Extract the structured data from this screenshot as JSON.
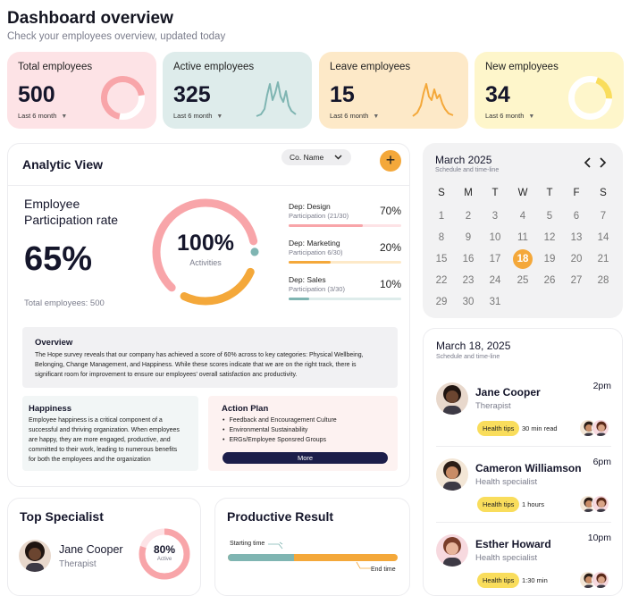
{
  "header": {
    "title": "Dashboard overview",
    "subtitle": "Check your employees overview, updated today"
  },
  "stats": [
    {
      "label": "Total employees",
      "value": "500",
      "period": "Last 6 month",
      "bg": "#fde3e6",
      "accent": "#f8a5a9",
      "viz": "donut",
      "level": 0.7
    },
    {
      "label": "Active employees",
      "value": "325",
      "period": "Last 6 month",
      "bg": "#deeceb",
      "accent": "#7fb5b2",
      "viz": "spark"
    },
    {
      "label": "Leave employees",
      "value": "15",
      "period": "Last 6 month",
      "bg": "#fde9c8",
      "accent": "#f4a83a",
      "viz": "spark"
    },
    {
      "label": "New employees",
      "value": "34",
      "period": "Last 6 month",
      "bg": "#fef6cb",
      "accent": "#f9dd5c",
      "viz": "donut",
      "level": 0.2
    }
  ],
  "analytic": {
    "title": "Analytic View",
    "filter_label": "Co. Name",
    "participation_title_1": "Employee",
    "participation_title_2": "Participation rate",
    "participation_value": "65%",
    "total_employees": "Total employees: 500",
    "ring_value": "100%",
    "ring_label": "Activities",
    "departments": [
      {
        "name": "Dep: Design",
        "sub": "Participation (21/30)",
        "pct": "70%",
        "level": 0.7,
        "color": "#f8a5a9",
        "track": "#fde3e6"
      },
      {
        "name": "Dep: Marketing",
        "sub": "Participation 6/30)",
        "pct": "20%",
        "level": 0.2,
        "color": "#f4a83a",
        "track": "#fde9c8"
      },
      {
        "name": "Dep: Sales",
        "sub": "Participation (3/30)",
        "pct": "10%",
        "level": 0.1,
        "color": "#7fb5b2",
        "track": "#deeceb"
      }
    ],
    "overview": {
      "title": "Overview",
      "line1": "The Hope survey reveals that our company has achieved a score of 60% across to key categories: Physical Wellbeing,",
      "line2": "Belonging, Change Management, and Happiness. While these scores indicate that we are on the right track, there is",
      "line3": "significant room for improvement to ensure our employees' overall satisfaction anc productivity."
    },
    "happiness": {
      "title": "Happiness",
      "lines": [
        "Employee happiness is a critical component of a",
        "successful and thriving organization. When employees",
        "are happy, they are more engaged, productive, and",
        "committed to their work, leading to numerous benefits",
        "for both the employees and the organization"
      ]
    },
    "action_plan": {
      "title": "Action Plan",
      "items": [
        "Feedback and Encouragement Culture",
        "Environmental Sustainability",
        "ERGs/Employee Sponsred Groups"
      ],
      "more_label": "More"
    }
  },
  "calendar": {
    "title": "March 2025",
    "subtitle": "Schedule and time-line",
    "weekdays": [
      "S",
      "M",
      "T",
      "W",
      "T",
      "F",
      "S"
    ],
    "selected": "18",
    "weeks": [
      [
        "1",
        "2",
        "3",
        "4",
        "5",
        "6",
        "7"
      ],
      [
        "8",
        "9",
        "10",
        "11",
        "12",
        "13",
        "14"
      ],
      [
        "15",
        "16",
        "17",
        "18",
        "19",
        "20",
        "21"
      ],
      [
        "22",
        "23",
        "24",
        "25",
        "26",
        "27",
        "28"
      ],
      [
        "29",
        "30",
        "31"
      ]
    ]
  },
  "schedule": {
    "title": "March 18, 2025",
    "subtitle": "Schedule and time-line",
    "items": [
      {
        "name": "Jane Cooper",
        "role": "Therapist",
        "time": "2pm",
        "tag": "Health tips",
        "meta": "30 min read",
        "skin": "#6b4530",
        "hair": "#1f1410",
        "bg": "#e8d8cc"
      },
      {
        "name": "Cameron Williamson",
        "role": "Health specialist",
        "time": "6pm",
        "tag": "Health tips",
        "meta": "1 hours",
        "skin": "#c98c66",
        "hair": "#2b1d16",
        "bg": "#f3e6d6"
      },
      {
        "name": "Esther Howard",
        "role": "Health specialist",
        "time": "10pm",
        "tag": "Health tips",
        "meta": "1:30 min",
        "skin": "#e7b49b",
        "hair": "#7a3d2a",
        "bg": "#f7d9df"
      }
    ]
  },
  "top_specialist": {
    "title": "Top Specialist",
    "name": "Jane Cooper",
    "role": "Therapist",
    "pct": "80%",
    "pct_label": "Active",
    "level": 0.8
  },
  "productive": {
    "title": "Productive Result",
    "start_label": "Starting time",
    "end_label": "End time"
  },
  "colors": {
    "pink": "#f8a5a9",
    "teal": "#7fb5b2",
    "orange": "#f4a83a",
    "yellow": "#f9dd5c",
    "navy": "#1c1e4a"
  },
  "icons": [
    "chevron-down-icon",
    "plus-icon",
    "chevron-left-icon",
    "chevron-right-icon",
    "arrow-icon"
  ]
}
